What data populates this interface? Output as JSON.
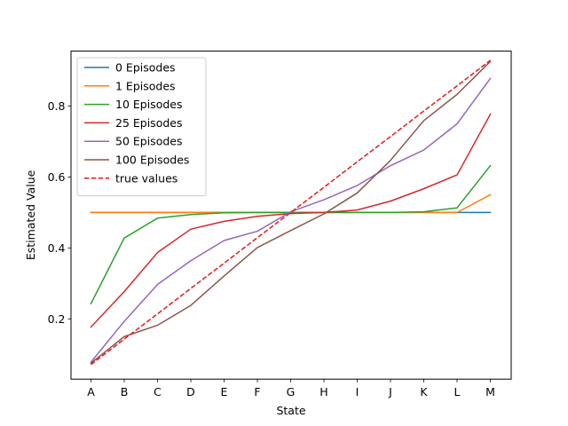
{
  "chart_data": {
    "type": "line",
    "title": "",
    "xlabel": "State",
    "ylabel": "Estimated Value",
    "categories": [
      "A",
      "B",
      "C",
      "D",
      "E",
      "F",
      "G",
      "H",
      "I",
      "J",
      "K",
      "L",
      "M"
    ],
    "ylim": [
      0.03,
      0.955
    ],
    "yticks": [
      0.2,
      0.4,
      0.6,
      0.8
    ],
    "ytick_labels": [
      "0.2",
      "0.4",
      "0.6",
      "0.8"
    ],
    "grid": false,
    "legend_position": "top-left",
    "series": [
      {
        "name": "0 Episodes",
        "color": "#1f77b4",
        "dash": "solid",
        "values": [
          0.5,
          0.5,
          0.5,
          0.5,
          0.5,
          0.5,
          0.5,
          0.5,
          0.5,
          0.5,
          0.5,
          0.5,
          0.5
        ]
      },
      {
        "name": "1 Episodes",
        "color": "#ff7f0e",
        "dash": "solid",
        "values": [
          0.5,
          0.5,
          0.5,
          0.5,
          0.5,
          0.5,
          0.5,
          0.5,
          0.5,
          0.5,
          0.5,
          0.5,
          0.55
        ]
      },
      {
        "name": "10 Episodes",
        "color": "#2ca02c",
        "dash": "solid",
        "values": [
          0.243,
          0.428,
          0.484,
          0.494,
          0.499,
          0.5,
          0.5,
          0.5,
          0.5,
          0.5,
          0.502,
          0.513,
          0.632
        ]
      },
      {
        "name": "25 Episodes",
        "color": "#d62728",
        "dash": "solid",
        "values": [
          0.177,
          0.277,
          0.387,
          0.453,
          0.475,
          0.489,
          0.497,
          0.5,
          0.507,
          0.532,
          0.567,
          0.606,
          0.777
        ]
      },
      {
        "name": "50 Episodes",
        "color": "#9467bd",
        "dash": "solid",
        "values": [
          0.078,
          0.193,
          0.297,
          0.364,
          0.421,
          0.447,
          0.502,
          0.536,
          0.576,
          0.632,
          0.676,
          0.75,
          0.878
        ]
      },
      {
        "name": "100 Episodes",
        "color": "#8c564b",
        "dash": "solid",
        "values": [
          0.075,
          0.15,
          0.182,
          0.238,
          0.321,
          0.401,
          0.449,
          0.496,
          0.555,
          0.647,
          0.759,
          0.833,
          0.926
        ]
      },
      {
        "name": "true values",
        "color": "#e41a1c",
        "dash": "dashed",
        "values": [
          0.071,
          0.143,
          0.214,
          0.286,
          0.357,
          0.429,
          0.5,
          0.571,
          0.643,
          0.714,
          0.786,
          0.857,
          0.929
        ]
      }
    ]
  }
}
